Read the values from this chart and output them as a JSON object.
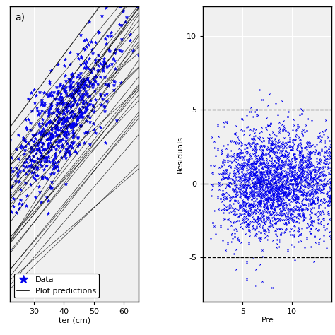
{
  "left_panel": {
    "label": "a)",
    "xlabel": "ter (cm)",
    "x_ticks": [
      30,
      40,
      50,
      60
    ],
    "x_lim": [
      22,
      65
    ],
    "y_lim": [
      -3,
      20
    ],
    "scatter_color": "#0000EE",
    "scatter_marker": "*",
    "scatter_size": 12,
    "line_color": "black",
    "n_data": 700,
    "n_lines": 35,
    "x_mean": 40,
    "x_std": 9,
    "y_slope_mean": 0.28,
    "y_slope_std": 0.04,
    "y_intercept_mean": 2.5,
    "y_intercept_std": 3.0,
    "y_noise": 2.0,
    "legend_entries": [
      "Data",
      "Plot predictions"
    ],
    "background_color": "#f0f0f0",
    "grid_color": "#ffffff"
  },
  "right_panel": {
    "xlabel": "Pre",
    "ylabel": "Residuals",
    "x_ticks": [
      5,
      10
    ],
    "x_lim": [
      1,
      14
    ],
    "y_lim": [
      -8,
      12
    ],
    "y_ticks": [
      -5,
      0,
      5,
      10
    ],
    "scatter_color": "#0000EE",
    "scatter_marker": "x",
    "scatter_size": 3,
    "n_data": 3000,
    "hline_y": [
      5,
      0,
      -5
    ],
    "hline_styles": [
      "--",
      "-.",
      "--"
    ],
    "hline_color": "black",
    "vline_x": 2.5,
    "background_color": "#f0f0f0",
    "grid_color": "#ffffff"
  }
}
